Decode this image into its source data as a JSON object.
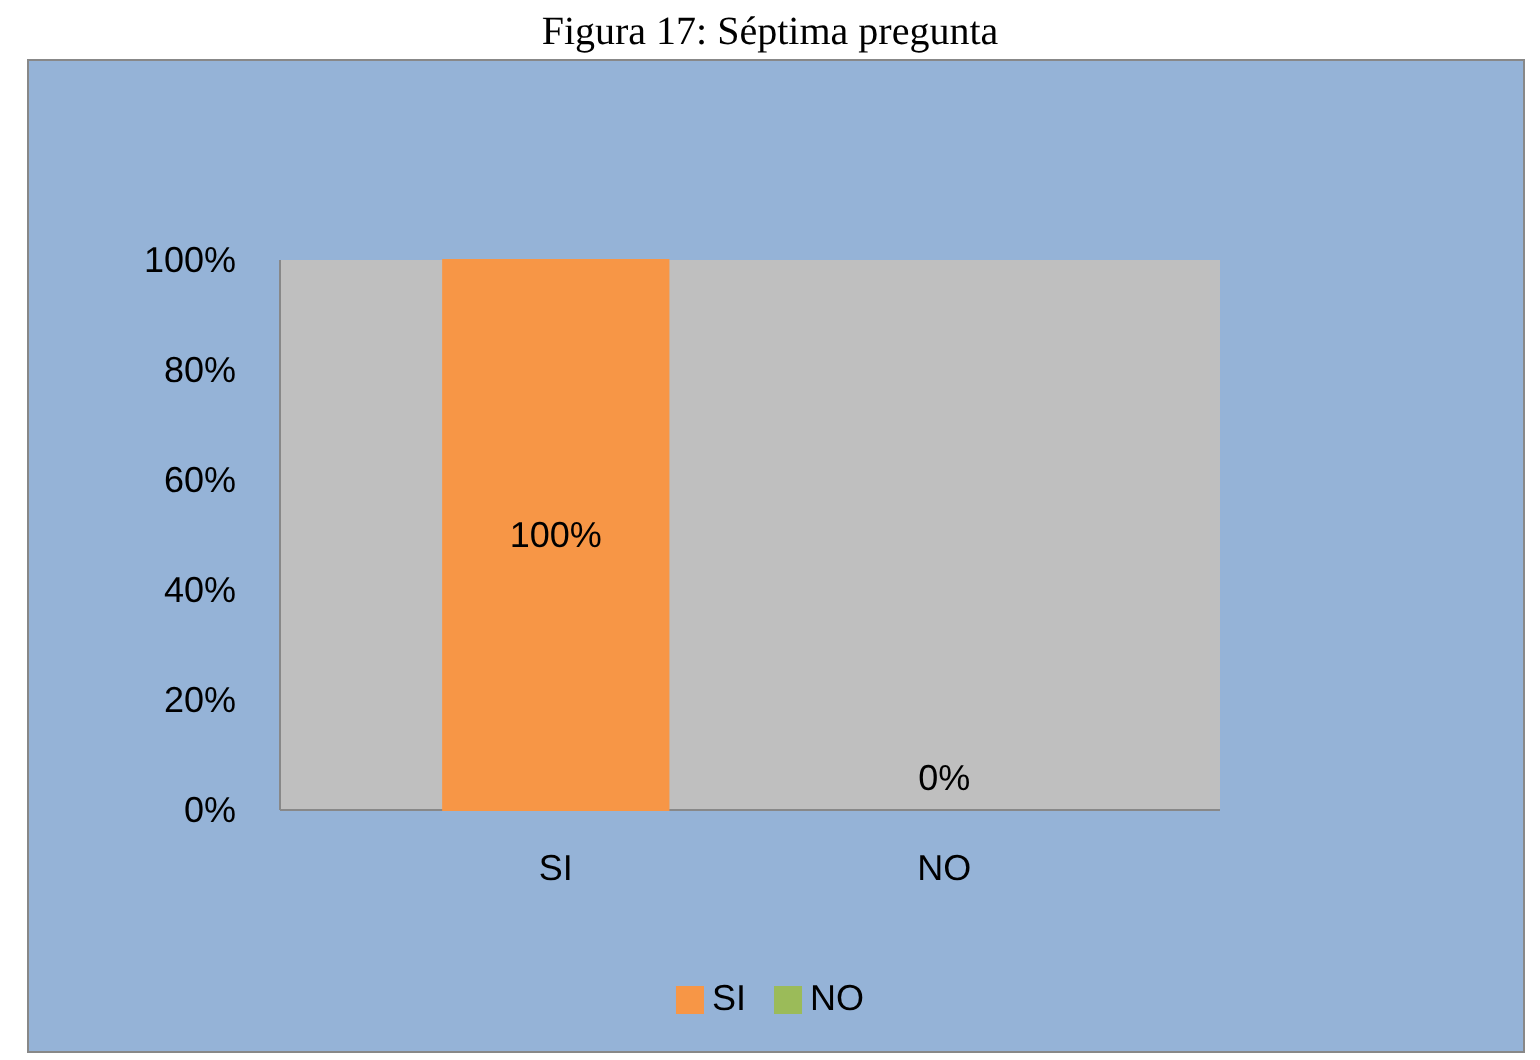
{
  "chart_data": {
    "type": "bar",
    "title": "Figura 17: Séptima pregunta",
    "categories": [
      "SI",
      "NO"
    ],
    "series": [
      {
        "name": "SI",
        "color": "#f79646",
        "values": [
          100,
          null
        ],
        "value_labels": [
          "100%",
          null
        ]
      },
      {
        "name": "NO",
        "color": "#9bbb59",
        "values": [
          null,
          0
        ],
        "value_labels": [
          null,
          "0%"
        ]
      }
    ],
    "ylim": [
      0,
      100
    ],
    "yticks": [
      {
        "value": 0,
        "label": "0%"
      },
      {
        "value": 20,
        "label": "20%"
      },
      {
        "value": 40,
        "label": "40%"
      },
      {
        "value": 60,
        "label": "60%"
      },
      {
        "value": 80,
        "label": "80%"
      },
      {
        "value": 100,
        "label": "100%"
      }
    ],
    "grid": false,
    "legend": "bottom"
  }
}
